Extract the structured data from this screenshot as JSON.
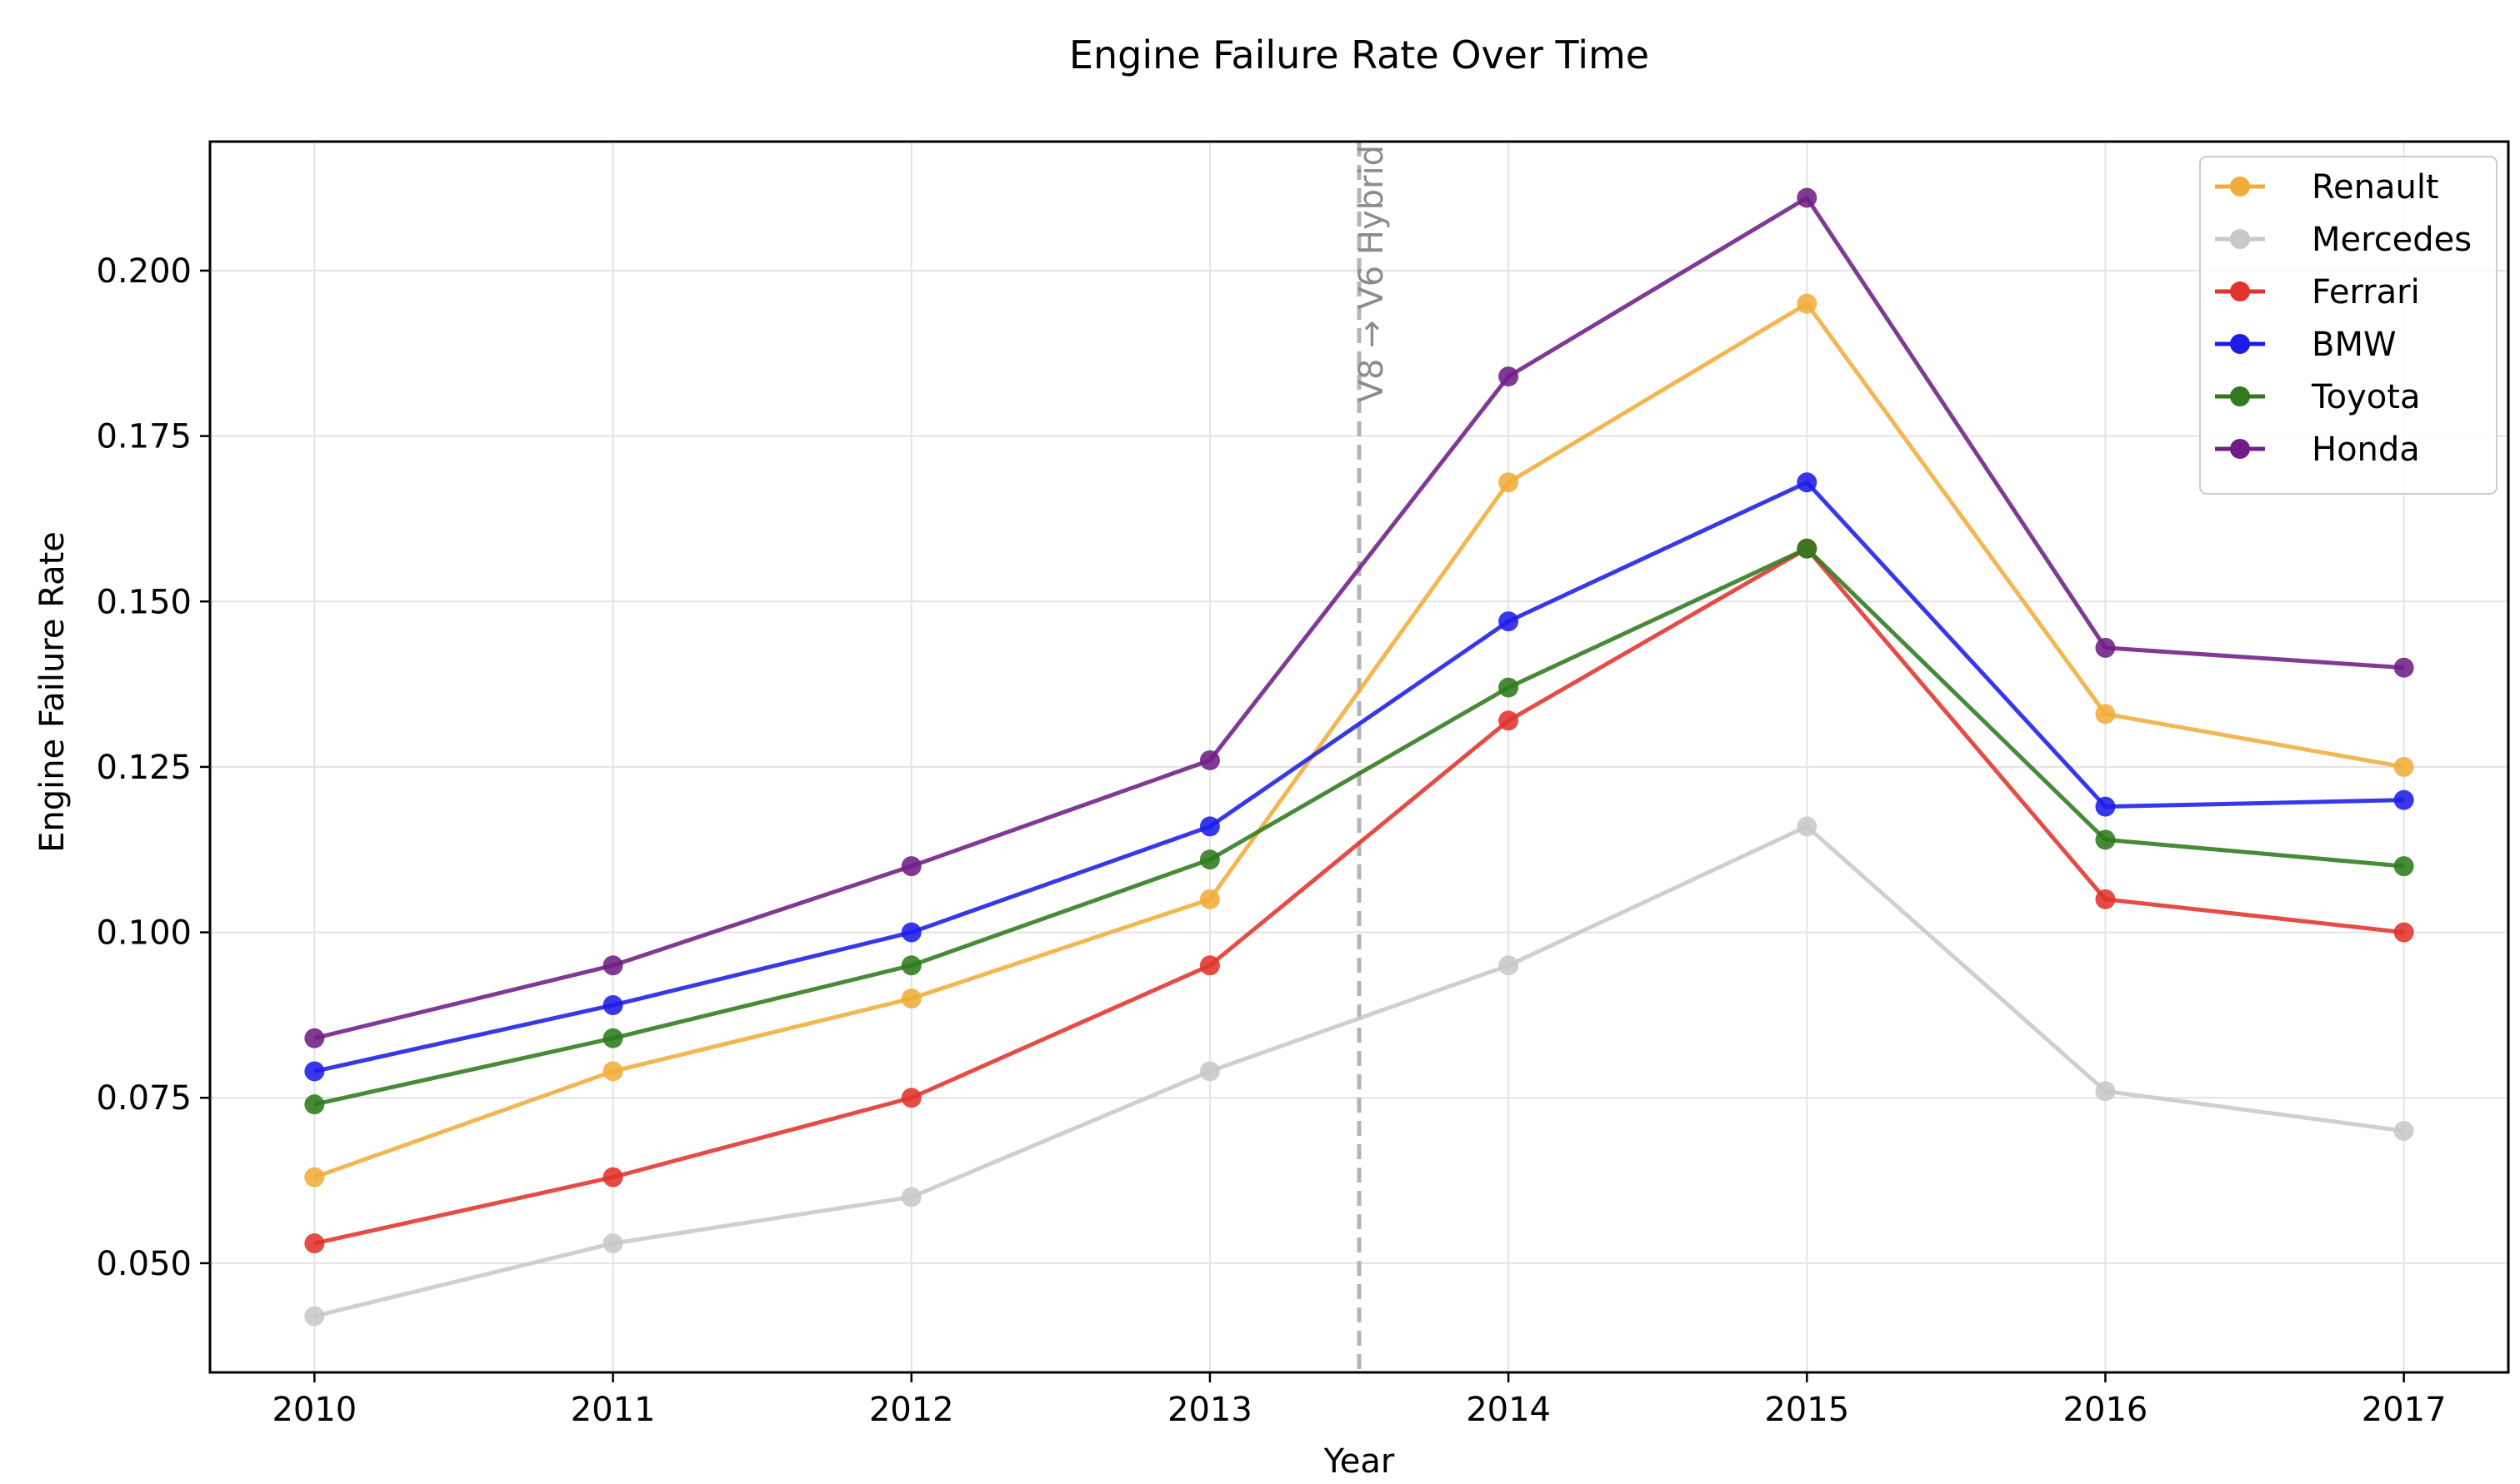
{
  "chart_data": {
    "type": "line",
    "title": "Engine Failure Rate Over Time",
    "xlabel": "Year",
    "ylabel": "Engine Failure Rate",
    "x": [
      2010,
      2011,
      2012,
      2013,
      2014,
      2015,
      2016,
      2017
    ],
    "x_tick_labels": [
      "2010",
      "2011",
      "2012",
      "2013",
      "2014",
      "2015",
      "2016",
      "2017"
    ],
    "xlim": [
      2009.65,
      2017.35
    ],
    "ylim": [
      0.0335,
      0.2195
    ],
    "y_ticks": [
      0.05,
      0.075,
      0.1,
      0.125,
      0.15,
      0.175,
      0.2
    ],
    "y_tick_labels": [
      "0.050",
      "0.075",
      "0.100",
      "0.125",
      "0.150",
      "0.175",
      "0.200"
    ],
    "grid": true,
    "legend_position": "top-right",
    "series": [
      {
        "name": "Renault",
        "color": "#f0ad3a",
        "values": [
          0.063,
          0.079,
          0.09,
          0.105,
          0.168,
          0.195,
          0.133,
          0.125
        ]
      },
      {
        "name": "Mercedes",
        "color": "#c8c8c8",
        "values": [
          0.042,
          0.053,
          0.06,
          0.079,
          0.095,
          0.116,
          0.076,
          0.07
        ]
      },
      {
        "name": "Ferrari",
        "color": "#e0332b",
        "values": [
          0.053,
          0.063,
          0.075,
          0.095,
          0.132,
          0.158,
          0.105,
          0.1
        ]
      },
      {
        "name": "BMW",
        "color": "#1c1ce8",
        "values": [
          0.079,
          0.089,
          0.1,
          0.116,
          0.147,
          0.168,
          0.119,
          0.12
        ]
      },
      {
        "name": "Toyota",
        "color": "#2e7a1c",
        "values": [
          0.074,
          0.084,
          0.095,
          0.111,
          0.137,
          0.158,
          0.114,
          0.11
        ]
      },
      {
        "name": "Honda",
        "color": "#6f1f85",
        "values": [
          0.084,
          0.095,
          0.11,
          0.126,
          0.184,
          0.211,
          0.143,
          0.14
        ]
      }
    ],
    "annotations": [
      {
        "type": "vertical-dashed-line",
        "x": 2013.5,
        "text": "V8 → V6 Hybrid",
        "color": "#b4b4b4"
      }
    ]
  }
}
